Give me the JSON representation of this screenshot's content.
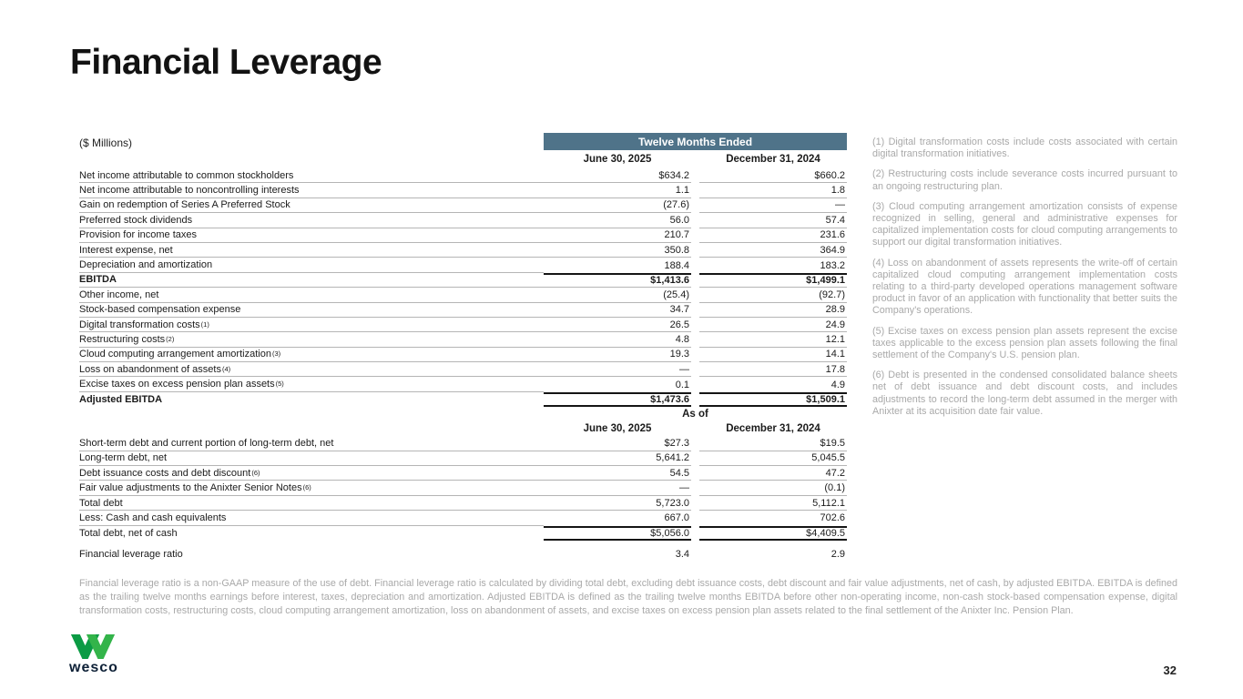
{
  "slide": {
    "title": "Financial Leverage",
    "page_number": "32"
  },
  "logo": {
    "brand": "wesco",
    "green_dark": "#0B9B44",
    "green_light": "#33B44A",
    "navy": "#0e2137"
  },
  "table": {
    "units_label": "($ Millions)",
    "header_band": "Twelve Months Ended",
    "band_color": "#4F7389",
    "col1_header": "June 30, 2025",
    "col2_header": "December 31, 2024",
    "asof_header": "As of",
    "asof_col1_header": "June 30, 2025",
    "asof_col2_header": "December 31, 2024",
    "section1_rows": [
      {
        "label": "Net income attributable to common stockholders",
        "v1": "$634.2",
        "v2": "$660.2"
      },
      {
        "label": "Net income attributable to noncontrolling interests",
        "v1": "1.1",
        "v2": "1.8"
      },
      {
        "label": "Gain on redemption of Series A Preferred Stock",
        "v1": "(27.6)",
        "v2": "—"
      },
      {
        "label": "Preferred stock dividends",
        "v1": "56.0",
        "v2": "57.4"
      },
      {
        "label": "Provision for income taxes",
        "v1": "210.7",
        "v2": "231.6"
      },
      {
        "label": "Interest expense, net",
        "v1": "350.8",
        "v2": "364.9"
      },
      {
        "label": "Depreciation and amortization",
        "v1": "188.4",
        "v2": "183.2"
      },
      {
        "label": "EBITDA",
        "v1": "$1,413.6",
        "v2": "$1,499.1",
        "bold": true,
        "top": true
      },
      {
        "label": "Other income, net",
        "v1": "(25.4)",
        "v2": "(92.7)"
      },
      {
        "label": "Stock-based compensation expense",
        "v1": "34.7",
        "v2": "28.9"
      },
      {
        "label": "Digital transformation costs",
        "sup": "(1)",
        "v1": "26.5",
        "v2": "24.9"
      },
      {
        "label": "Restructuring costs",
        "sup": "(2)",
        "v1": "4.8",
        "v2": "12.1"
      },
      {
        "label": "Cloud computing arrangement amortization",
        "sup": "(3)",
        "v1": "19.3",
        "v2": "14.1"
      },
      {
        "label": "Loss on abandonment of assets",
        "sup": "(4)",
        "v1": "—",
        "v2": "17.8"
      },
      {
        "label": "Excise taxes on excess pension plan assets",
        "sup": "(5)",
        "v1": "0.1",
        "v2": "4.9"
      },
      {
        "label": "Adjusted EBITDA",
        "v1": "$1,473.6",
        "v2": "$1,509.1",
        "bold": true,
        "top": true,
        "bottom": true
      }
    ],
    "section2_rows": [
      {
        "label": "Short-term debt and current portion of long-term debt, net",
        "v1": "$27.3",
        "v2": "$19.5"
      },
      {
        "label": "Long-term debt, net",
        "v1": "5,641.2",
        "v2": "5,045.5"
      },
      {
        "label": "Debt issuance costs and debt discount",
        "sup": "(6)",
        "v1": "54.5",
        "v2": "47.2"
      },
      {
        "label": "Fair value adjustments to the Anixter Senior Notes",
        "sup": "(6)",
        "v1": "—",
        "v2": "(0.1)"
      },
      {
        "label": "Total debt",
        "v1": "5,723.0",
        "v2": "5,112.1"
      },
      {
        "label": "Less: Cash and cash equivalents",
        "v1": "667.0",
        "v2": "702.6"
      },
      {
        "label": "Total debt, net of cash",
        "v1": "$5,056.0",
        "v2": "$4,409.5",
        "top": true,
        "bottom": true
      },
      {
        "label": "Financial leverage ratio",
        "v1": "3.4",
        "v2": "2.9",
        "plain": true,
        "gap_before": true
      }
    ]
  },
  "footnotes": [
    "(1) Digital transformation costs include costs associated with certain digital transformation initiatives.",
    "(2) Restructuring costs include severance costs incurred pursuant to an ongoing restructuring plan.",
    "(3) Cloud computing arrangement amortization consists of expense recognized in selling, general and administrative expenses for capitalized implementation costs for cloud computing arrangements to support our digital transformation initiatives.",
    "(4) Loss on abandonment of assets represents the write-off of certain capitalized cloud computing arrangement implementation costs relating to a third-party developed operations management software product in favor of an application with functionality that better suits the Company's operations.",
    "(5) Excise taxes on excess pension plan assets represent the excise taxes applicable to the excess pension plan assets following the final settlement of the Company's U.S. pension plan.",
    "(6) Debt is presented in the condensed consolidated balance sheets net of debt issuance and debt discount costs, and includes adjustments to record the long-term debt assumed in the merger with Anixter at its acquisition date fair value."
  ],
  "disclosure": "Financial leverage ratio is a non-GAAP measure of the use of debt. Financial leverage ratio is calculated by dividing total debt, excluding debt issuance costs, debt discount and fair value adjustments, net of cash, by adjusted EBITDA. EBITDA is defined as the trailing twelve months earnings before interest, taxes, depreciation and amortization. Adjusted EBITDA is defined as the trailing twelve months EBITDA before other non-operating income, non-cash stock-based compensation expense, digital transformation costs, restructuring costs, cloud computing arrangement amortization, loss on abandonment of assets, and excise taxes on excess pension plan assets related to the final settlement of the Anixter Inc. Pension Plan."
}
